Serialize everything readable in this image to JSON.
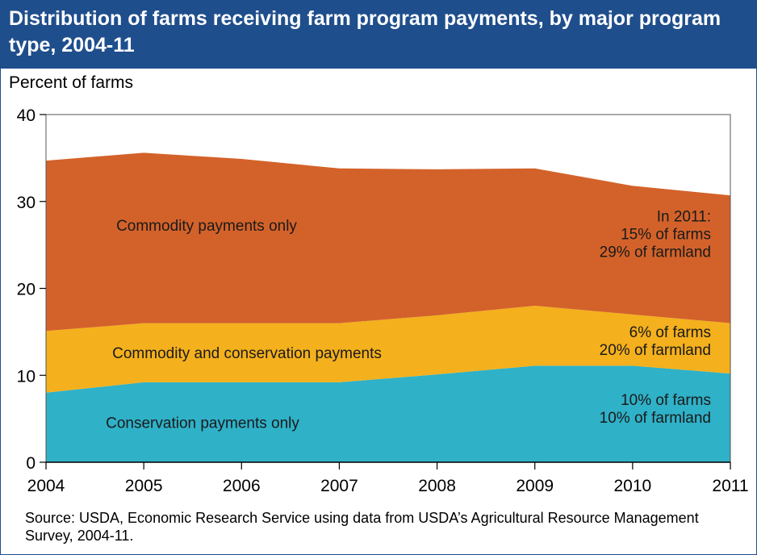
{
  "title": "Distribution of farms receiving farm program payments, by major program type, 2004-11",
  "source": "Source: USDA, Economic Research Service using data from USDA’s Agricultural Resource Management Survey, 2004-11.",
  "chart_data": {
    "type": "area",
    "stacked": true,
    "ylabel": "Percent of farms",
    "xlabel": "",
    "x": [
      2004,
      2005,
      2006,
      2007,
      2008,
      2009,
      2010,
      2011
    ],
    "ylim": [
      0,
      40
    ],
    "yticks": [
      0,
      10,
      20,
      30,
      40
    ],
    "grid": false,
    "series": [
      {
        "name": "Conservation payments only",
        "color": "#2fb1c8",
        "values": [
          8.0,
          9.2,
          9.2,
          9.2,
          10.1,
          11.1,
          11.1,
          10.2
        ]
      },
      {
        "name": "Commodity and conservation payments",
        "color": "#f4b01d",
        "values": [
          7.1,
          6.8,
          6.8,
          6.8,
          6.8,
          6.9,
          5.9,
          5.8
        ]
      },
      {
        "name": "Commodity payments only",
        "color": "#d3622a",
        "values": [
          19.6,
          19.6,
          18.9,
          17.8,
          16.8,
          15.8,
          14.8,
          14.7
        ]
      }
    ],
    "annotations": [
      {
        "series": 2,
        "lines": [
          "In 2011:",
          "15% of farms",
          "29% of farmland"
        ]
      },
      {
        "series": 1,
        "lines": [
          "6% of farms",
          "20% of farmland"
        ]
      },
      {
        "series": 0,
        "lines": [
          "10% of farms",
          "10% of farmland"
        ]
      }
    ]
  }
}
